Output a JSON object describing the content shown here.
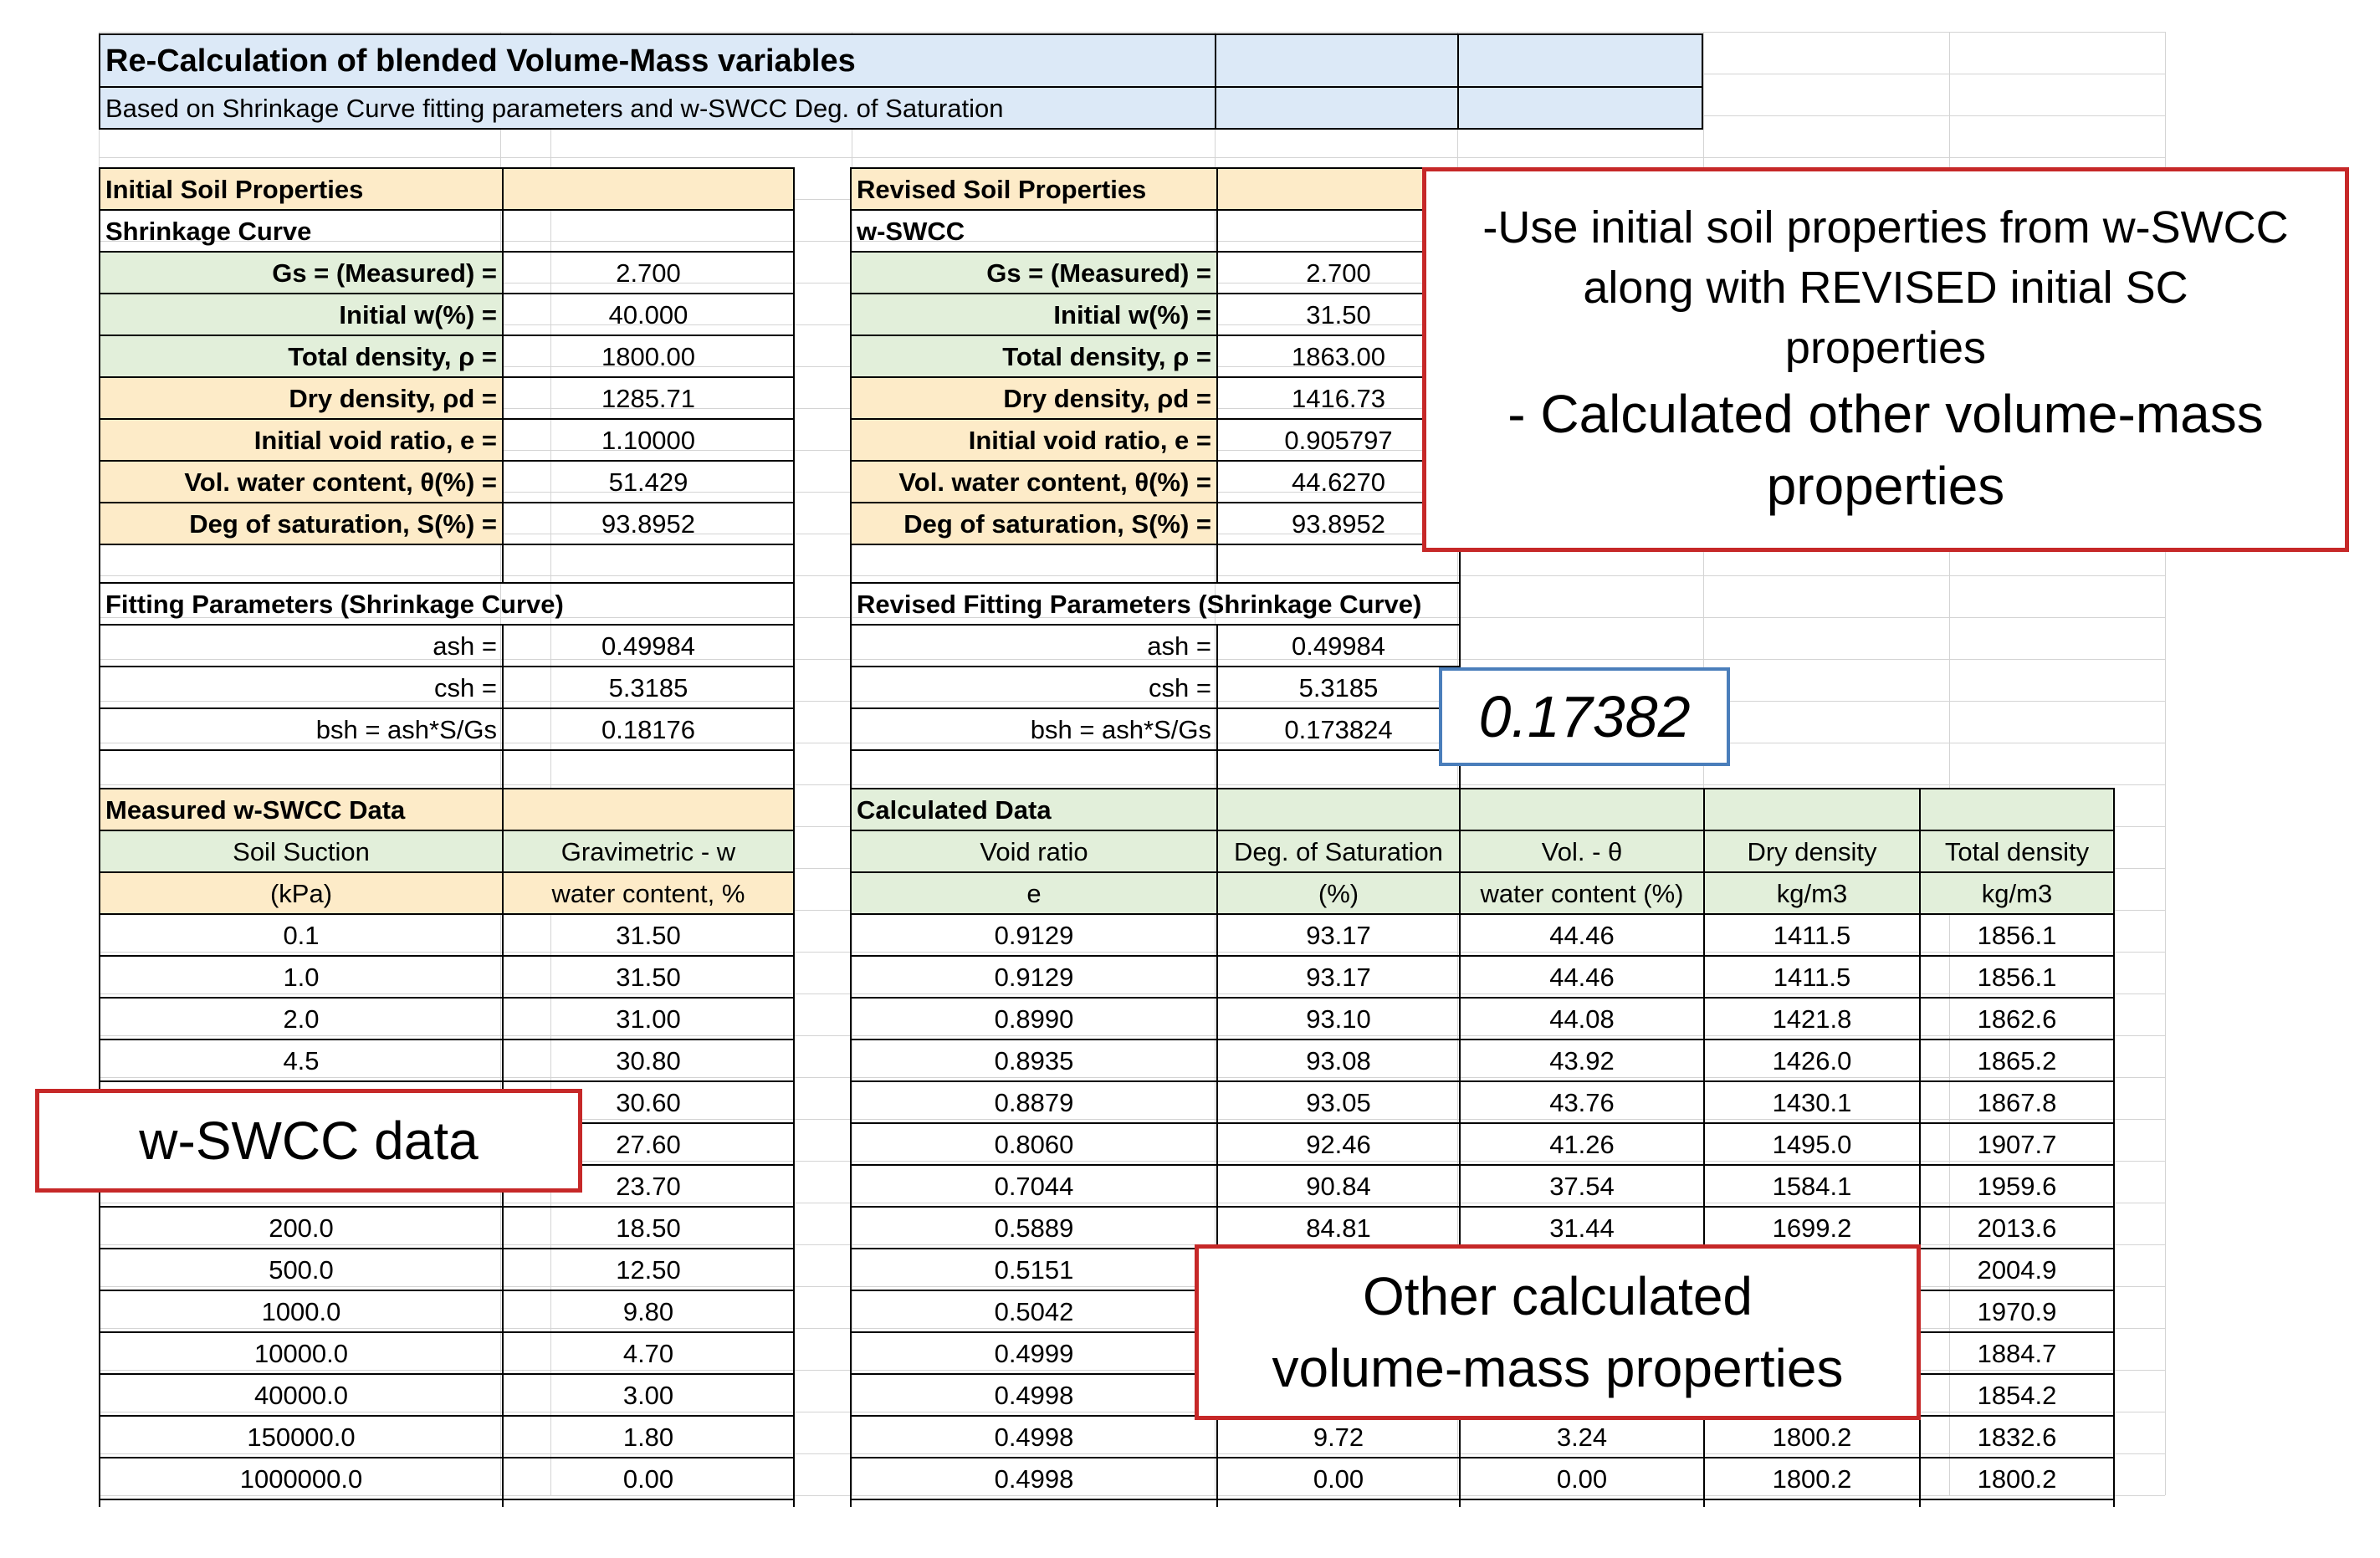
{
  "title": {
    "line1": "Re-Calculation of blended Volume-Mass variables",
    "line2": "Based on Shrinkage Curve fitting parameters and w-SWCC Deg. of Saturation"
  },
  "initial": {
    "header": "Initial Soil Properties",
    "sub": "Shrinkage Curve",
    "props": [
      {
        "label": "Gs = (Measured) =",
        "value": "2.700"
      },
      {
        "label": "Initial w(%) =",
        "value": "40.000"
      },
      {
        "label": "Total density, ρ =",
        "value": "1800.00"
      },
      {
        "label": "Dry density, ρd =",
        "value": "1285.71"
      },
      {
        "label": "Initial void ratio, e  =",
        "value": "1.10000"
      },
      {
        "label": "Vol. water content, θ(%) =",
        "value": "51.429"
      },
      {
        "label": "Deg of saturation, S(%) =",
        "value": "93.8952"
      }
    ],
    "fit_header": "Fitting Parameters (Shrinkage Curve)",
    "fit": [
      {
        "label": "ash  =",
        "value": "0.49984"
      },
      {
        "label": "csh =",
        "value": "5.3185"
      },
      {
        "label": "bsh = ash*S/Gs",
        "value": "0.18176"
      }
    ]
  },
  "revised": {
    "header": "Revised  Soil Properties",
    "sub": "w-SWCC",
    "props": [
      {
        "label": "Gs = (Measured) =",
        "value": "2.700"
      },
      {
        "label": "Initial w(%) =",
        "value": "31.50"
      },
      {
        "label": "Total density, ρ =",
        "value": "1863.00"
      },
      {
        "label": "Dry density, ρd =",
        "value": "1416.73"
      },
      {
        "label": "Initial void ratio, e  =",
        "value": "0.905797"
      },
      {
        "label": "Vol. water content, θ(%) =",
        "value": "44.6270"
      },
      {
        "label": "Deg of saturation, S(%) =",
        "value": "93.8952"
      }
    ],
    "fit_header": "Revised Fitting Parameters (Shrinkage Curve)",
    "fit": [
      {
        "label": "ash  =",
        "value": "0.49984"
      },
      {
        "label": "csh =",
        "value": "5.3185"
      },
      {
        "label": "bsh = ash*S/Gs",
        "value": "0.173824"
      }
    ]
  },
  "measured": {
    "header": "Measured w-SWCC Data",
    "col1_h1": "Soil Suction",
    "col1_h2": "(kPa)",
    "col2_h1": "Gravimetric - w",
    "col2_h2": "water content, %",
    "rows": [
      [
        "0.1",
        "31.50"
      ],
      [
        "1.0",
        "31.50"
      ],
      [
        "2.0",
        "31.00"
      ],
      [
        "4.5",
        "30.80"
      ],
      [
        "",
        "30.60"
      ],
      [
        "",
        "27.60"
      ],
      [
        "",
        "23.70"
      ],
      [
        "200.0",
        "18.50"
      ],
      [
        "500.0",
        "12.50"
      ],
      [
        "1000.0",
        "9.80"
      ],
      [
        "10000.0",
        "4.70"
      ],
      [
        "40000.0",
        "3.00"
      ],
      [
        "150000.0",
        "1.80"
      ],
      [
        "1000000.0",
        "0.00"
      ]
    ]
  },
  "calculated": {
    "header": "Calculated Data",
    "headers1": [
      "Void ratio",
      "Deg. of Saturation",
      "Vol. - θ",
      "Dry density",
      "Total density"
    ],
    "headers2": [
      "e",
      "(%)",
      "water content (%)",
      "kg/m3",
      "kg/m3"
    ],
    "rows": [
      [
        "0.9129",
        "93.17",
        "44.46",
        "1411.5",
        "1856.1"
      ],
      [
        "0.9129",
        "93.17",
        "44.46",
        "1411.5",
        "1856.1"
      ],
      [
        "0.8990",
        "93.10",
        "44.08",
        "1421.8",
        "1862.6"
      ],
      [
        "0.8935",
        "93.08",
        "43.92",
        "1426.0",
        "1865.2"
      ],
      [
        "0.8879",
        "93.05",
        "43.76",
        "1430.1",
        "1867.8"
      ],
      [
        "0.8060",
        "92.46",
        "41.26",
        "1495.0",
        "1907.7"
      ],
      [
        "0.7044",
        "90.84",
        "37.54",
        "1584.1",
        "1959.6"
      ],
      [
        "0.5889",
        "84.81",
        "31.44",
        "1699.2",
        "2013.6"
      ],
      [
        "0.5151",
        "",
        "",
        "",
        "2004.9"
      ],
      [
        "0.5042",
        "",
        "",
        "",
        "1970.9"
      ],
      [
        "0.4999",
        "",
        "",
        "",
        "1884.7"
      ],
      [
        "0.4998",
        "",
        "",
        "",
        "1854.2"
      ],
      [
        "0.4998",
        "9.72",
        "3.24",
        "1800.2",
        "1832.6"
      ],
      [
        "0.4998",
        "0.00",
        "0.00",
        "1800.2",
        "1800.2"
      ]
    ]
  },
  "callouts": {
    "top_right": {
      "line1": "-Use initial soil properties from w-SWCC",
      "line2": "along with REVISED initial SC",
      "line3": "properties",
      "line4": "- Calculated other volume-mass",
      "line5": "properties"
    },
    "bsh_value": "0.17382",
    "wswcc": "w-SWCC data",
    "other_line1": "Other calculated",
    "other_line2": "volume-mass properties",
    "border_color": "#c62828",
    "blue_border": "#4a7ebb"
  }
}
